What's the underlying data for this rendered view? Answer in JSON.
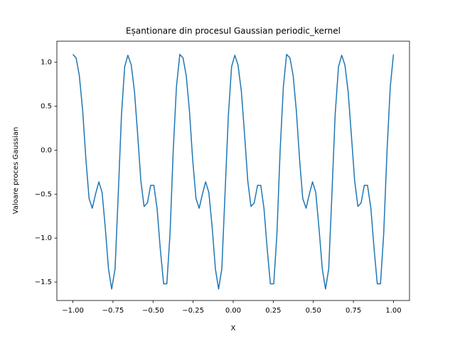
{
  "chart_data": {
    "type": "line",
    "title": "Eșantionare din procesul Gaussian periodic_kernel",
    "xlabel": "X",
    "ylabel": "Valoare proces Gaussian",
    "x": [
      -1.0,
      -0.98,
      -0.96,
      -0.939,
      -0.919,
      -0.899,
      -0.879,
      -0.859,
      -0.838,
      -0.818,
      -0.798,
      -0.778,
      -0.758,
      -0.737,
      -0.717,
      -0.697,
      -0.677,
      -0.657,
      -0.636,
      -0.616,
      -0.596,
      -0.576,
      -0.556,
      -0.535,
      -0.515,
      -0.495,
      -0.475,
      -0.455,
      -0.434,
      -0.414,
      -0.394,
      -0.374,
      -0.354,
      -0.333,
      -0.313,
      -0.293,
      -0.273,
      -0.253,
      -0.232,
      -0.212,
      -0.192,
      -0.172,
      -0.152,
      -0.131,
      -0.111,
      -0.091,
      -0.071,
      -0.051,
      -0.03,
      -0.01,
      0.01,
      0.03,
      0.051,
      0.071,
      0.091,
      0.111,
      0.131,
      0.152,
      0.172,
      0.192,
      0.212,
      0.232,
      0.253,
      0.273,
      0.293,
      0.313,
      0.333,
      0.354,
      0.374,
      0.394,
      0.414,
      0.434,
      0.455,
      0.475,
      0.495,
      0.515,
      0.535,
      0.556,
      0.576,
      0.596,
      0.616,
      0.636,
      0.657,
      0.677,
      0.697,
      0.717,
      0.737,
      0.758,
      0.778,
      0.798,
      0.818,
      0.838,
      0.859,
      0.879,
      0.899,
      0.919,
      0.939,
      0.96,
      0.98,
      1.0
    ],
    "series": [
      {
        "color": "#1f77b4",
        "values": [
          1.09,
          1.05,
          0.85,
          0.45,
          -0.1,
          -0.55,
          -0.66,
          -0.5,
          -0.36,
          -0.48,
          -0.88,
          -1.35,
          -1.58,
          -1.35,
          -0.5,
          0.4,
          0.95,
          1.08,
          0.97,
          0.67,
          0.18,
          -0.35,
          -0.64,
          -0.6,
          -0.4,
          -0.4,
          -0.66,
          -1.12,
          -1.52,
          -1.52,
          -0.95,
          0.0,
          0.72,
          1.09,
          1.05,
          0.85,
          0.45,
          -0.1,
          -0.55,
          -0.66,
          -0.5,
          -0.36,
          -0.48,
          -0.88,
          -1.35,
          -1.58,
          -1.35,
          -0.5,
          0.4,
          0.95,
          1.08,
          0.97,
          0.67,
          0.18,
          -0.35,
          -0.64,
          -0.6,
          -0.4,
          -0.4,
          -0.66,
          -1.12,
          -1.52,
          -1.52,
          -0.95,
          0.0,
          0.72,
          1.09,
          1.05,
          0.85,
          0.45,
          -0.1,
          -0.55,
          -0.66,
          -0.5,
          -0.36,
          -0.48,
          -0.88,
          -1.35,
          -1.58,
          -1.35,
          -0.5,
          0.4,
          0.95,
          1.08,
          0.97,
          0.67,
          0.18,
          -0.35,
          -0.64,
          -0.6,
          -0.4,
          -0.4,
          -0.66,
          -1.12,
          -1.52,
          -1.52,
          -0.95,
          0.0,
          0.72,
          1.09
        ]
      }
    ],
    "xlim": [
      -1.1,
      1.1
    ],
    "ylim": [
      -1.71,
      1.24
    ],
    "xticks": [
      {
        "value": -1,
        "label": "−1.00"
      },
      {
        "value": -0.75,
        "label": "−0.75"
      },
      {
        "value": -0.5,
        "label": "−0.50"
      },
      {
        "value": -0.25,
        "label": "−0.25"
      },
      {
        "value": 0,
        "label": "0.00"
      },
      {
        "value": 0.25,
        "label": "0.25"
      },
      {
        "value": 0.5,
        "label": "0.50"
      },
      {
        "value": 0.75,
        "label": "0.75"
      },
      {
        "value": 1,
        "label": "1.00"
      }
    ],
    "yticks": [
      {
        "value": -1.5,
        "label": "−1.5"
      },
      {
        "value": -1,
        "label": "−1.0"
      },
      {
        "value": -0.5,
        "label": "−0.5"
      },
      {
        "value": 0,
        "label": "0.0"
      },
      {
        "value": 0.5,
        "label": "0.5"
      },
      {
        "value": 1,
        "label": "1.0"
      }
    ],
    "grid": false
  }
}
